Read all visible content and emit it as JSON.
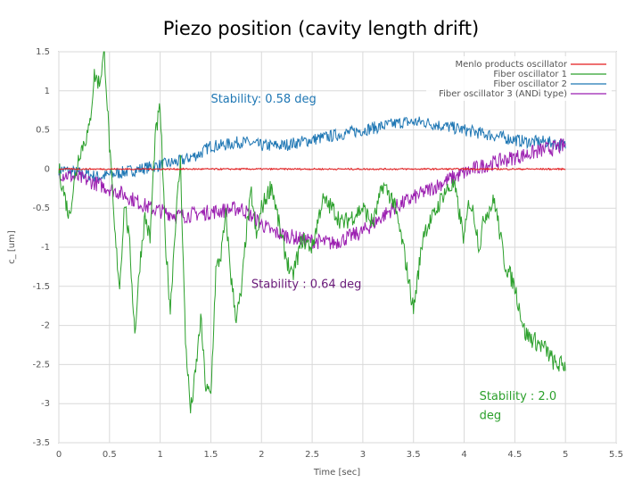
{
  "slide_title": "Piezo position (cavity length drift)",
  "chart_data": {
    "type": "line",
    "xlabel": "Time [sec]",
    "ylabel": "c_ [um]",
    "xlim": [
      0,
      5.5
    ],
    "ylim": [
      -3.5,
      1.5
    ],
    "xticks": [
      0,
      0.5,
      1,
      1.5,
      2,
      2.5,
      3,
      3.5,
      4,
      4.5,
      5,
      5.5
    ],
    "xtick_labels": [
      "0",
      "0.5",
      "1",
      "1.5",
      "2",
      "2.5",
      "3",
      "3.5",
      "4",
      "4.5",
      "5",
      "5.5"
    ],
    "yticks": [
      -3.5,
      -3,
      -2.5,
      -2,
      -1.5,
      -1,
      -0.5,
      0,
      0.5,
      1,
      1.5
    ],
    "ytick_labels": [
      "-3.5",
      "-3",
      "-2.5",
      "-2",
      "-1.5",
      "-1",
      "-0.5",
      "0",
      "0.5",
      "1",
      "1.5"
    ],
    "grid": true,
    "legend_position": "top-right",
    "series": [
      {
        "name": "Menlo products oscillator",
        "color": "#e41a1c",
        "noise": 0.01,
        "x": [
          0,
          5
        ],
        "y": [
          0,
          0
        ]
      },
      {
        "name": "Fiber oscillator 1",
        "color": "#2ca02c",
        "noise": 0.12,
        "x": [
          0,
          0.1,
          0.2,
          0.3,
          0.35,
          0.4,
          0.45,
          0.5,
          0.55,
          0.6,
          0.65,
          0.7,
          0.75,
          0.8,
          0.85,
          0.9,
          0.95,
          1.0,
          1.05,
          1.1,
          1.15,
          1.2,
          1.25,
          1.3,
          1.35,
          1.4,
          1.45,
          1.5,
          1.55,
          1.6,
          1.65,
          1.7,
          1.75,
          1.8,
          1.85,
          1.9,
          1.95,
          2.0,
          2.1,
          2.2,
          2.3,
          2.4,
          2.5,
          2.6,
          2.7,
          2.8,
          2.9,
          3.0,
          3.1,
          3.2,
          3.3,
          3.4,
          3.5,
          3.6,
          3.7,
          3.8,
          3.9,
          4.0,
          4.05,
          4.1,
          4.15,
          4.2,
          4.3,
          4.4,
          4.5,
          4.6,
          4.7,
          4.8,
          4.9,
          5.0
        ],
        "y": [
          0.0,
          -0.6,
          0.2,
          0.5,
          1.2,
          1.1,
          1.5,
          0.3,
          -0.8,
          -1.5,
          -0.4,
          -1.0,
          -2.1,
          -1.2,
          -0.6,
          -0.9,
          0.4,
          0.8,
          -0.9,
          -1.8,
          -0.7,
          0.1,
          -2.2,
          -3.1,
          -2.6,
          -1.9,
          -2.8,
          -2.9,
          -1.3,
          -1.1,
          -0.6,
          -1.4,
          -1.9,
          -1.6,
          -0.8,
          -0.3,
          -0.9,
          -0.5,
          -0.2,
          -0.9,
          -1.4,
          -0.9,
          -1.0,
          -0.4,
          -0.5,
          -0.7,
          -0.6,
          -0.5,
          -0.7,
          -0.2,
          -0.4,
          -1.0,
          -1.8,
          -0.8,
          -0.6,
          -0.3,
          -0.2,
          -0.9,
          -0.4,
          -0.6,
          -1.0,
          -0.6,
          -0.4,
          -1.2,
          -1.5,
          -2.1,
          -2.2,
          -2.3,
          -2.5,
          -2.5
        ]
      },
      {
        "name": "Fiber oscillator 2",
        "color": "#1f77b4",
        "noise": 0.08,
        "x": [
          0,
          0.2,
          0.4,
          0.6,
          0.8,
          1.0,
          1.2,
          1.4,
          1.5,
          1.6,
          1.8,
          2.0,
          2.2,
          2.4,
          2.6,
          2.8,
          3.0,
          3.2,
          3.4,
          3.6,
          3.8,
          4.0,
          4.2,
          4.4,
          4.6,
          4.8,
          5.0
        ],
        "y": [
          0.0,
          -0.05,
          -0.1,
          -0.05,
          0.0,
          0.05,
          0.1,
          0.2,
          0.3,
          0.3,
          0.35,
          0.3,
          0.3,
          0.35,
          0.4,
          0.45,
          0.5,
          0.55,
          0.6,
          0.6,
          0.55,
          0.5,
          0.45,
          0.4,
          0.35,
          0.35,
          0.3
        ]
      },
      {
        "name": "Fiber oscillator 3 (ANDi type)",
        "color": "#9b1fb0",
        "noise": 0.1,
        "x": [
          0,
          0.3,
          0.6,
          0.9,
          1.2,
          1.5,
          1.8,
          2.1,
          2.4,
          2.7,
          3.0,
          3.3,
          3.6,
          3.9,
          4.2,
          4.5,
          4.8,
          5.0
        ],
        "y": [
          -0.05,
          -0.15,
          -0.3,
          -0.5,
          -0.6,
          -0.55,
          -0.5,
          -0.8,
          -0.9,
          -0.95,
          -0.8,
          -0.5,
          -0.3,
          -0.1,
          0.05,
          0.15,
          0.25,
          0.3
        ]
      }
    ],
    "annotations": [
      {
        "text": "Stability: 0.58 deg",
        "x": 1.5,
        "y": 0.85,
        "color": "#1f77b4",
        "align": "start"
      },
      {
        "text": "Stability : 0.64 deg",
        "x": 1.9,
        "y": -1.52,
        "color": "#6a1b7a",
        "align": "start"
      },
      {
        "text": "Stability : 2.0",
        "x": 4.15,
        "y": -2.95,
        "color": "#2ca02c",
        "align": "start"
      },
      {
        "text": "deg",
        "x": 4.15,
        "y": -3.2,
        "color": "#2ca02c",
        "align": "start"
      }
    ]
  }
}
